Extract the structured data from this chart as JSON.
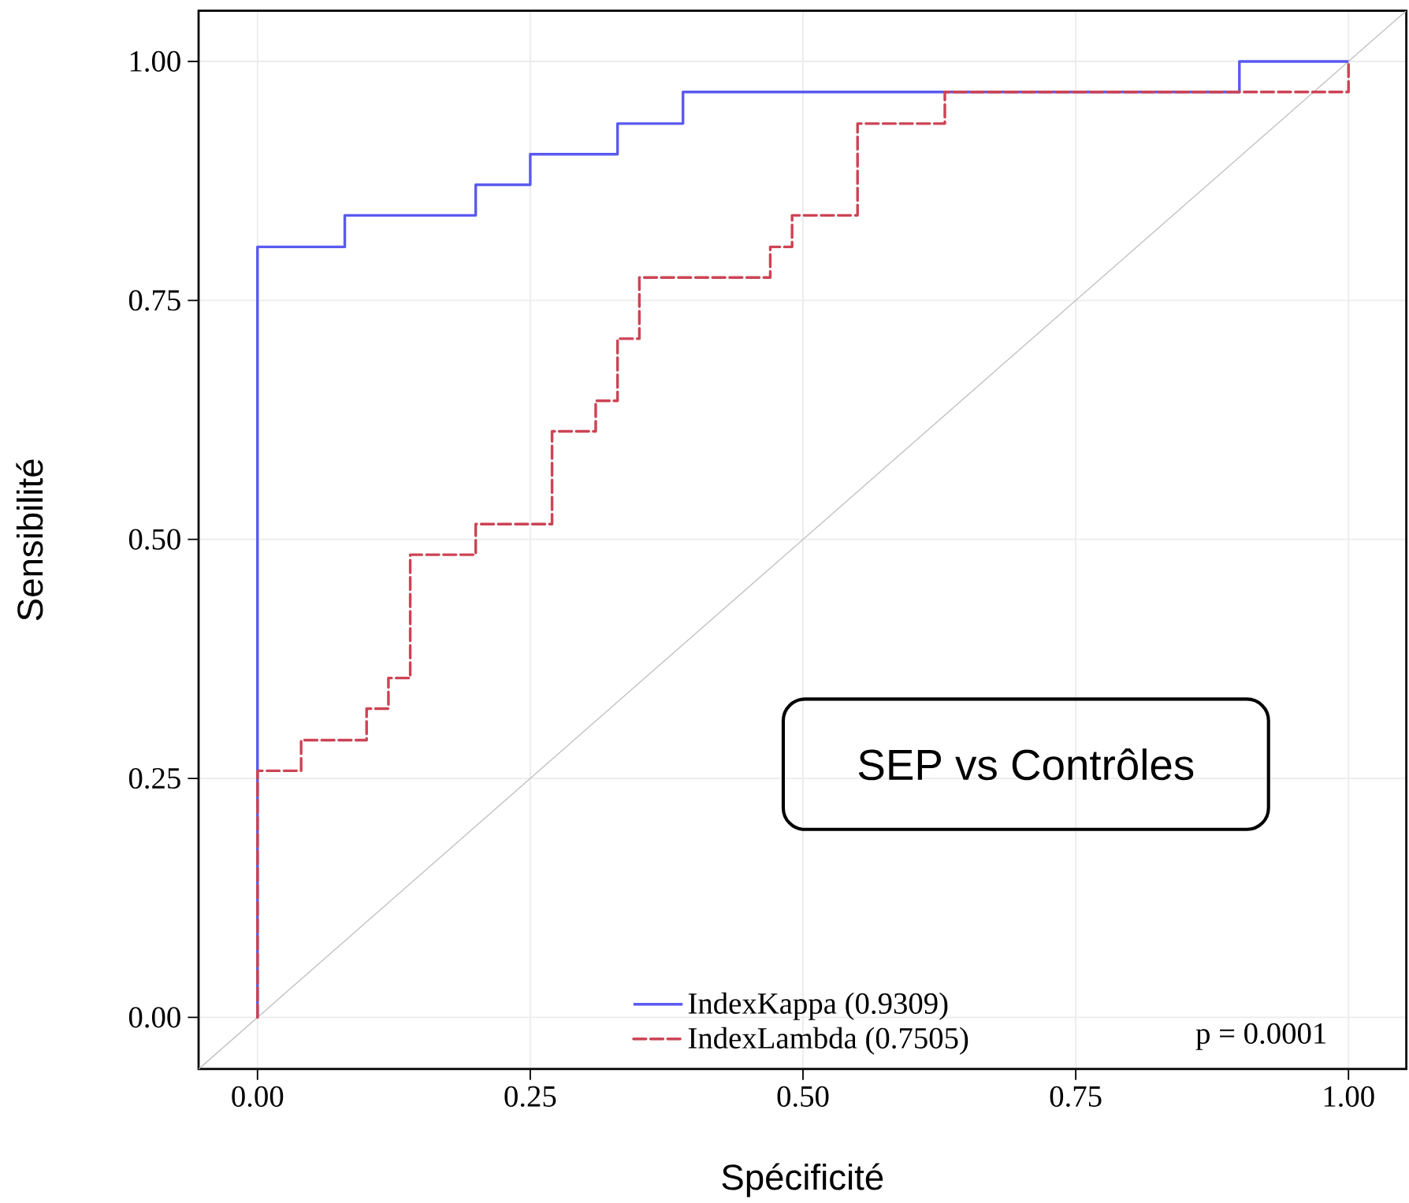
{
  "chart_data": {
    "type": "step",
    "xlabel": "Spécificité",
    "ylabel": "Sensibilité",
    "xlim": [
      -0.054,
      1.053
    ],
    "ylim": [
      -0.054,
      1.053
    ],
    "xticks": [
      {
        "value": 0,
        "label": "0.00"
      },
      {
        "value": 0.25,
        "label": "0.25"
      },
      {
        "value": 0.5,
        "label": "0.50"
      },
      {
        "value": 0.75,
        "label": "0.75"
      },
      {
        "value": 1,
        "label": "1.00"
      }
    ],
    "yticks": [
      {
        "value": 0,
        "label": "0.00"
      },
      {
        "value": 0.25,
        "label": "0.25"
      },
      {
        "value": 0.5,
        "label": "0.50"
      },
      {
        "value": 0.75,
        "label": "0.75"
      },
      {
        "value": 1,
        "label": "1.00"
      }
    ],
    "grid": true,
    "legend": "bottom",
    "annotations": [
      "SEP vs Contrôles",
      "p = 0.0001"
    ],
    "series": [
      {
        "type": "line",
        "color": "#c0c0c0",
        "line_style": "solid",
        "x": [
          -0.054,
          1.053
        ],
        "values": [
          -0.054,
          1.053
        ]
      },
      {
        "name": "IndexKappa (0.9309)",
        "color": "#5a5af0",
        "line_style": "solid",
        "x": [
          0,
          0,
          0.08,
          0.2,
          0.25,
          0.33,
          0.39,
          0.9,
          1
        ],
        "values": [
          0,
          0.806,
          0.839,
          0.871,
          0.903,
          0.935,
          0.968,
          1,
          1
        ]
      },
      {
        "name": "IndexLambda (0.7505)",
        "color": "#cc4455",
        "line_style": "dashed",
        "x": [
          0,
          0,
          0.04,
          0.1,
          0.12,
          0.14,
          0.2,
          0.27,
          0.31,
          0.33,
          0.35,
          0.47,
          0.49,
          0.55,
          0.63,
          1,
          1
        ],
        "values": [
          0,
          0.258,
          0.29,
          0.323,
          0.355,
          0.484,
          0.516,
          0.613,
          0.645,
          0.71,
          0.774,
          0.806,
          0.839,
          0.935,
          0.968,
          0.968,
          1
        ]
      }
    ]
  }
}
